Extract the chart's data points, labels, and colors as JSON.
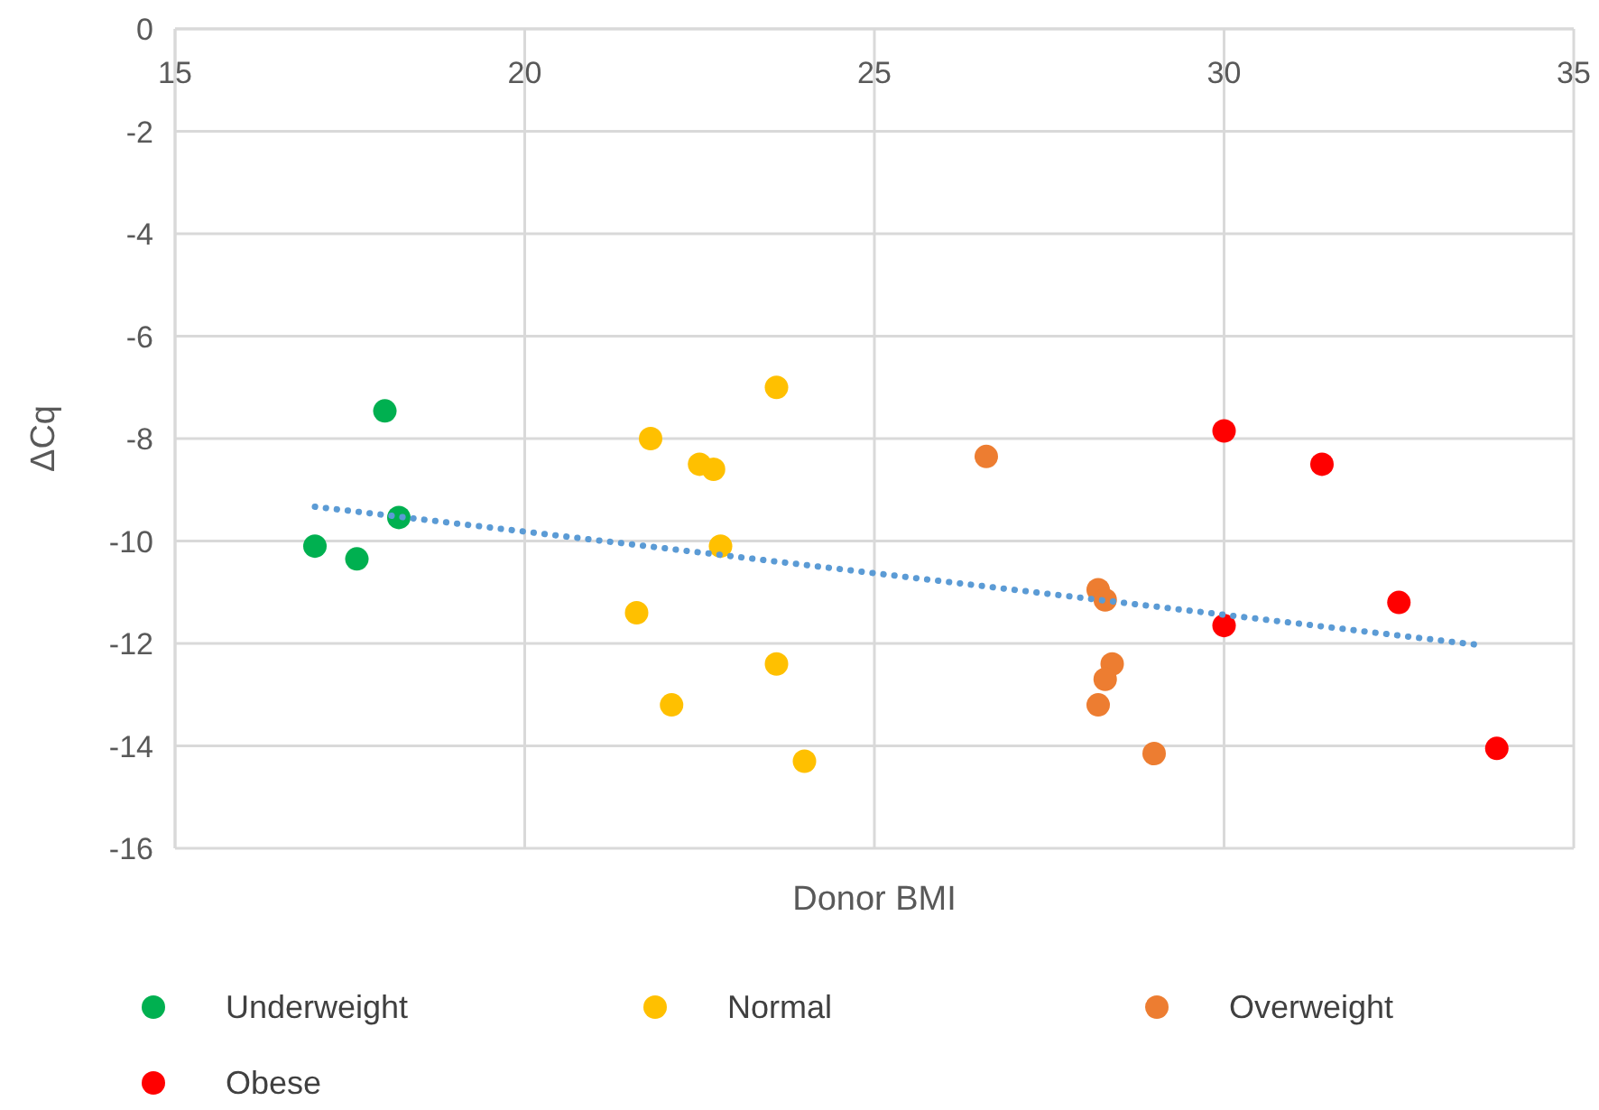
{
  "chart_data": {
    "type": "scatter",
    "xlabel": "Donor BMI",
    "ylabel": "ΔCq",
    "xlim": [
      15,
      35
    ],
    "xticks": [
      15,
      20,
      25,
      30,
      35
    ],
    "ylim": [
      -16,
      0
    ],
    "yticks": [
      -16,
      -14,
      -12,
      -10,
      -8,
      -6,
      -4,
      -2,
      0
    ],
    "grid": true,
    "legend": "bottom",
    "marker": "circle",
    "series": [
      {
        "name": "Underweight",
        "color": "#00b050",
        "x": [
          18.0,
          18.2,
          17.0,
          17.6
        ],
        "values": [
          -7.46,
          -9.54,
          -10.1,
          -10.35
        ]
      },
      {
        "name": "Normal",
        "color": "#ffc000",
        "x": [
          23.6,
          21.8,
          22.5,
          22.7,
          22.8,
          21.6,
          23.6,
          22.1,
          24.0
        ],
        "values": [
          -7.0,
          -8.0,
          -8.5,
          -8.6,
          -10.1,
          -11.4,
          -12.4,
          -13.2,
          -14.3
        ]
      },
      {
        "name": "Overweight",
        "color": "#ed7d31",
        "x": [
          26.6,
          28.2,
          28.3,
          28.4,
          28.3,
          28.2,
          29.0
        ],
        "values": [
          -8.35,
          -10.95,
          -11.15,
          -12.4,
          -12.7,
          -13.2,
          -14.15
        ]
      },
      {
        "name": "Obese",
        "color": "#ff0000",
        "x": [
          30.0,
          31.4,
          32.5,
          30.0,
          33.9
        ],
        "values": [
          -7.85,
          -8.5,
          -11.2,
          -11.65,
          -14.05
        ]
      },
      {
        "type": "line",
        "color": "#5b9bd5",
        "line_style": "dotted",
        "marker": "none",
        "x": [
          17.0,
          33.7
        ],
        "values": [
          -9.33,
          -12.04
        ]
      }
    ]
  }
}
